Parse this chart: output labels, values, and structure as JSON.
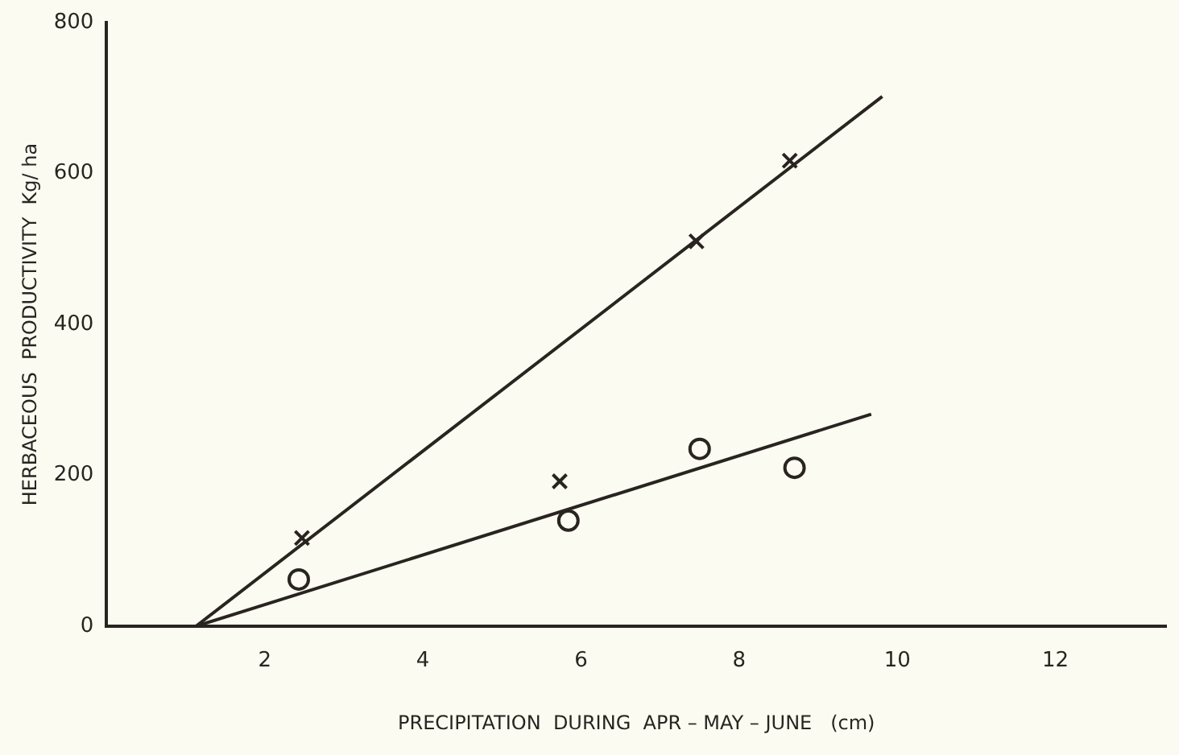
{
  "chart_data": {
    "type": "scatter",
    "xlabel": "PRECIPITATION  DURING  APR – MAY – JUNE   (cm)",
    "ylabel": "HERBACEOUS  PRODUCTIVITY  Kg/ ha",
    "xlim": [
      0,
      13.4
    ],
    "xticks": [
      2,
      4,
      6,
      8,
      10,
      12
    ],
    "ylim": [
      0,
      800
    ],
    "yticks": [
      0,
      200,
      400,
      600,
      800
    ],
    "grid": false,
    "legend": false,
    "series": [
      {
        "type": "scatter",
        "marker": "cross",
        "color": "#2a2420",
        "x": [
          2.47,
          5.73,
          7.46,
          8.64
        ],
        "values": [
          117,
          192,
          510,
          617
        ]
      },
      {
        "type": "scatter",
        "marker": "circle",
        "color": "#2a2420",
        "x": [
          2.43,
          5.84,
          7.5,
          8.7
        ],
        "values": [
          62,
          140,
          235,
          210
        ]
      },
      {
        "type": "line",
        "marker": "none",
        "color": "#2a2420",
        "x": [
          1.13,
          9.81
        ],
        "values": [
          0,
          702
        ]
      },
      {
        "type": "line",
        "marker": "none",
        "color": "#2a2420",
        "x": [
          1.13,
          9.67
        ],
        "values": [
          0,
          281
        ]
      }
    ]
  }
}
